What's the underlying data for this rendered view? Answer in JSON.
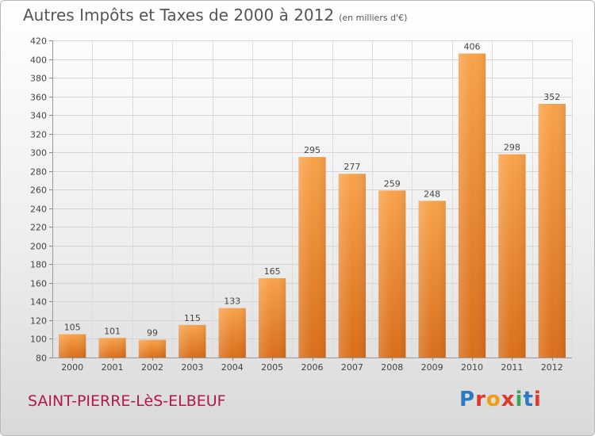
{
  "header": {
    "title": "Autres Impôts et Taxes de 2000 à 2012",
    "unit": "(en milliers d'€)"
  },
  "footer": {
    "place": "SAINT-PIERRE-LèS-ELBEUF",
    "brand": "Proxiti",
    "brand_colors": [
      "#2b7bc4",
      "#e0392c",
      "#f39c12",
      "#e0392c",
      "#3aa655",
      "#2b7bc4",
      "#e0392c"
    ]
  },
  "chart_data": {
    "type": "bar",
    "title": "Autres Impôts et Taxes de 2000 à 2012",
    "categories": [
      "2000",
      "2001",
      "2002",
      "2003",
      "2004",
      "2005",
      "2006",
      "2007",
      "2008",
      "2009",
      "2010",
      "2011",
      "2012"
    ],
    "values": [
      105,
      101,
      99,
      115,
      133,
      165,
      295,
      277,
      259,
      248,
      406,
      298,
      352
    ],
    "ylim": [
      80,
      420
    ],
    "ytick_step": 20,
    "grid": true,
    "bar_color": "#f0932e"
  }
}
